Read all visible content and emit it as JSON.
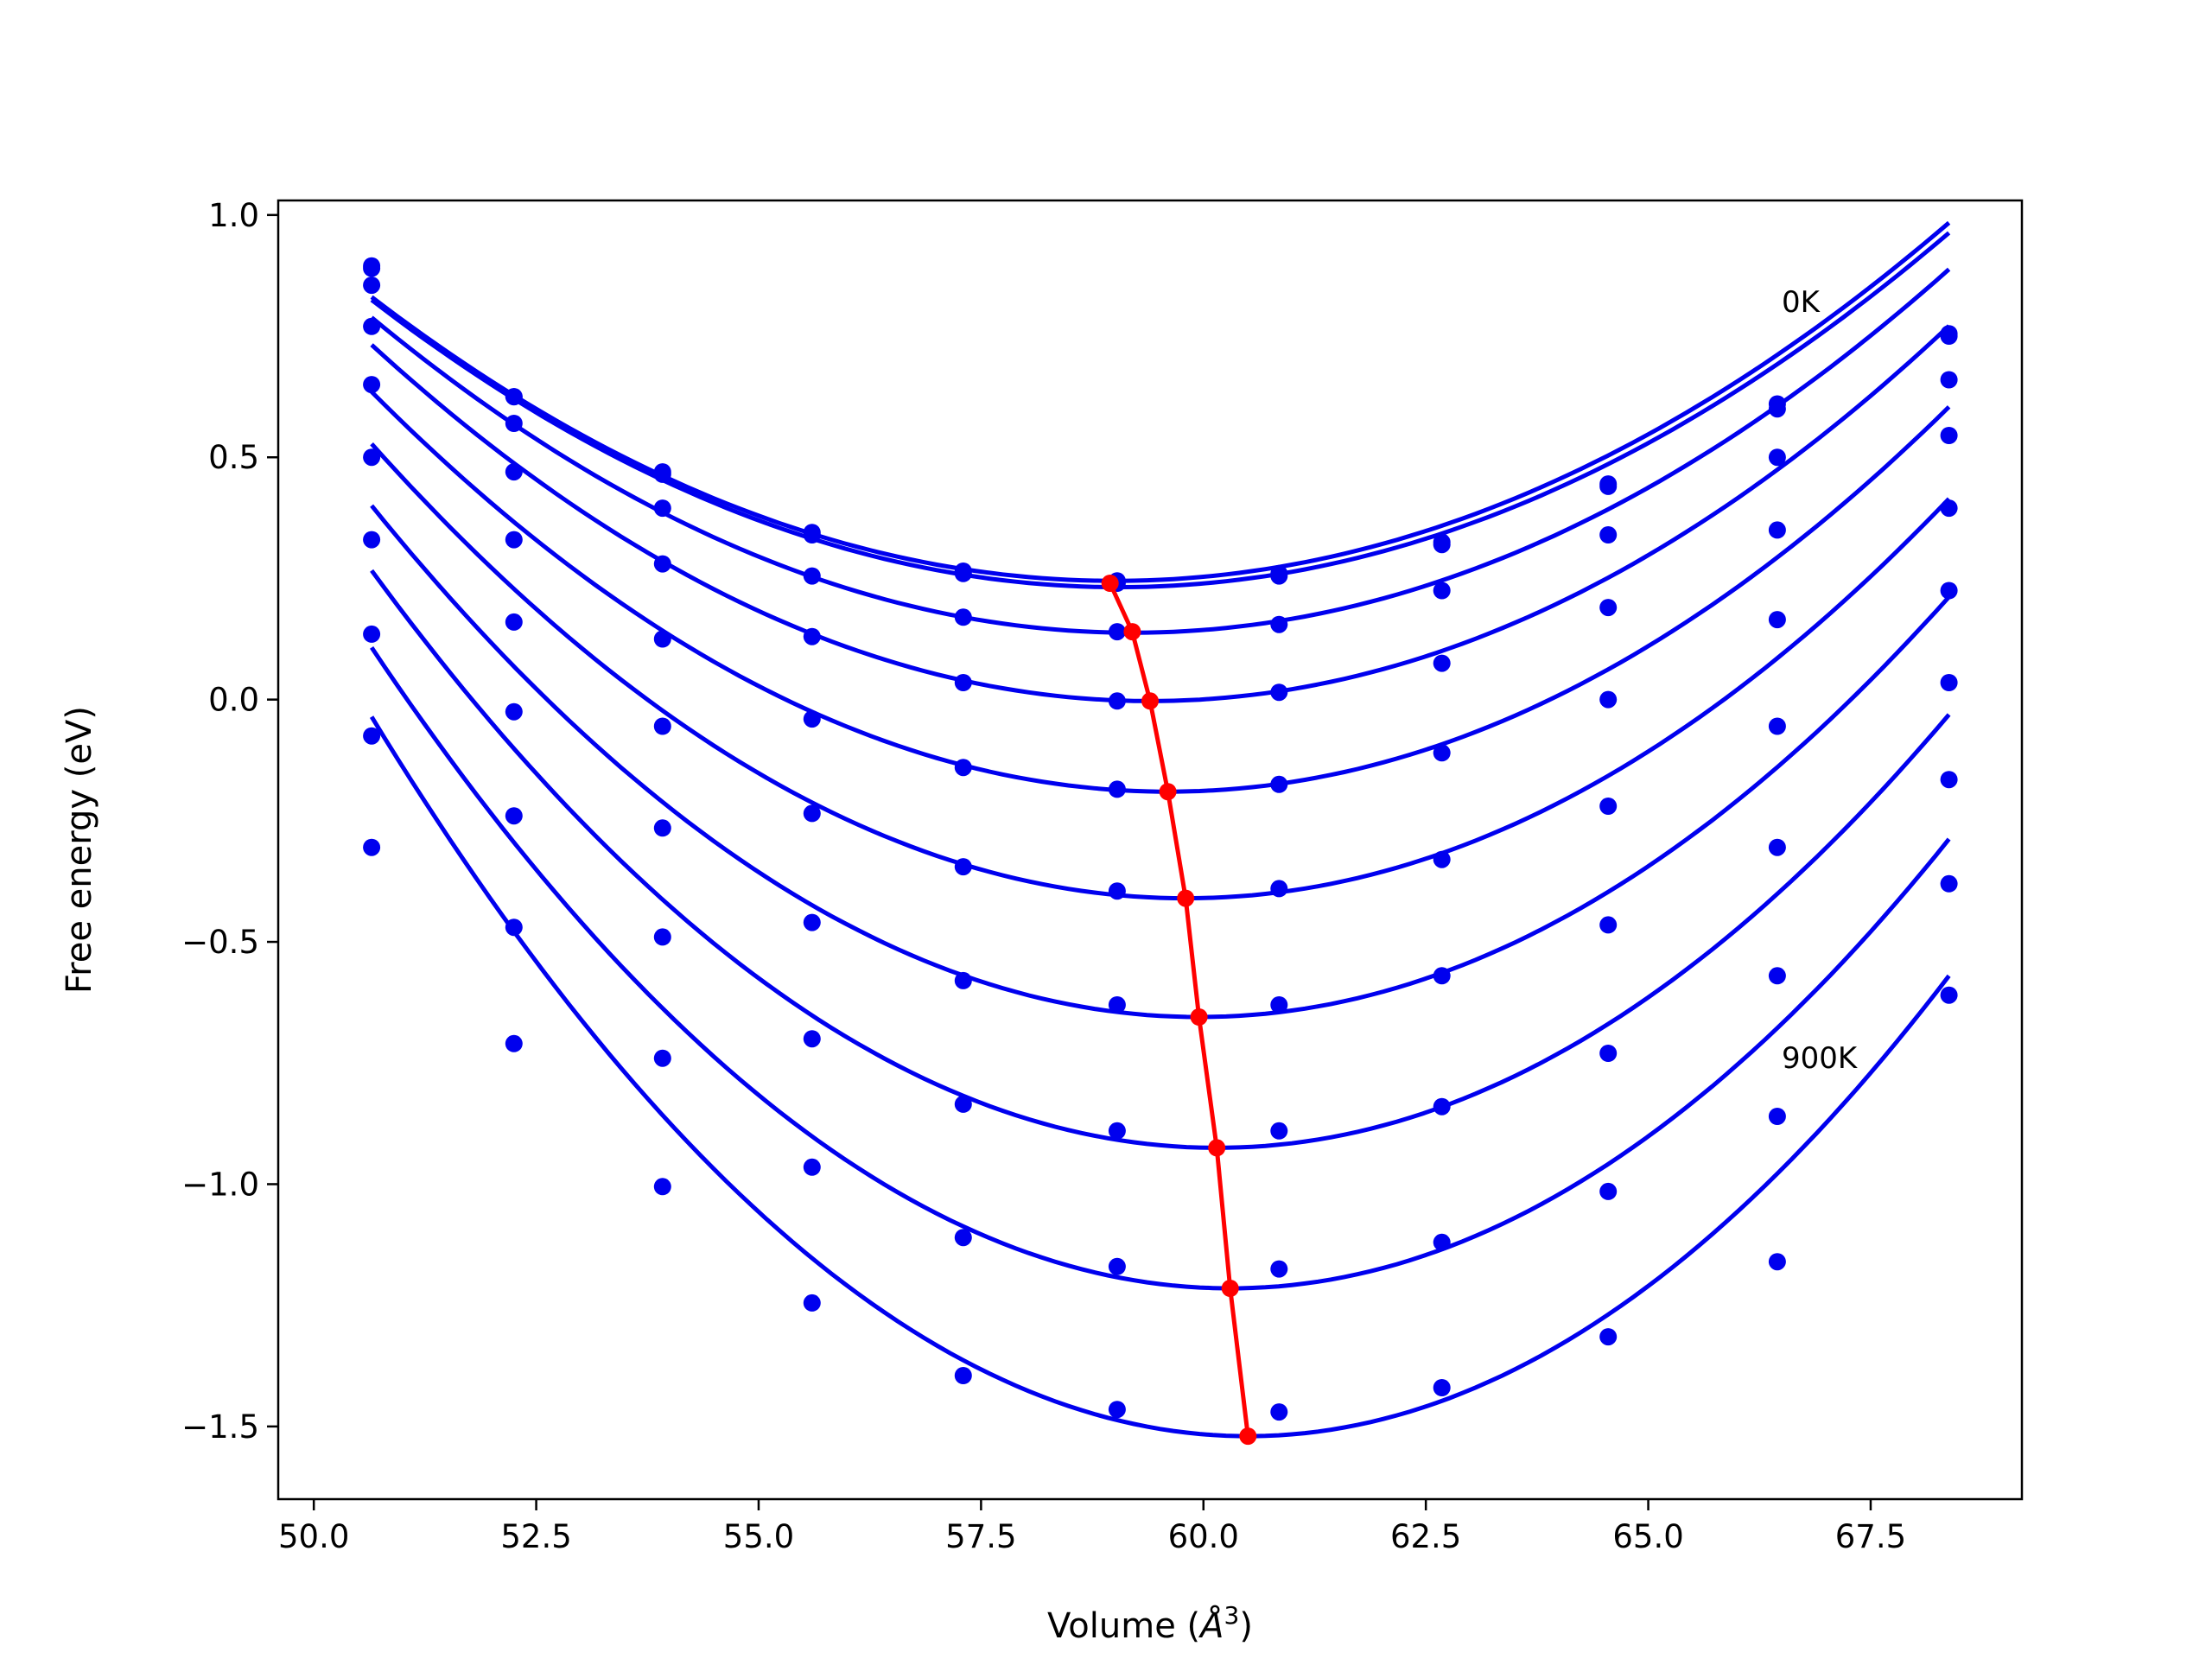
{
  "chart_data": {
    "type": "line",
    "xlabel": "Volume (Å³)",
    "xlabel_parts": [
      "Volume (",
      "Å",
      "3",
      ")"
    ],
    "ylabel": "Free energy (eV)",
    "xlim": [
      49.6,
      69.2
    ],
    "ylim": [
      -1.65,
      1.03
    ],
    "x_ticks": [
      50.0,
      52.5,
      55.0,
      57.5,
      60.0,
      62.5,
      65.0,
      67.5
    ],
    "x_tick_labels": [
      "50.0",
      "52.5",
      "55.0",
      "57.5",
      "60.0",
      "62.5",
      "65.0",
      "67.5"
    ],
    "y_ticks": [
      1.0,
      0.5,
      0.0,
      -0.5,
      -1.0,
      -1.5
    ],
    "y_tick_labels": [
      "1.0",
      "0.5",
      "0.0",
      "−0.5",
      "−1.0",
      "−1.5"
    ],
    "grid": false,
    "colors": {
      "curves": "#0000ee",
      "minima": "#ff0000",
      "frame": "#000000"
    },
    "annotations": [
      {
        "text": "0K",
        "x": 66.5,
        "y": 0.8
      },
      {
        "text": "900K",
        "x": 66.5,
        "y": -0.76
      }
    ],
    "volumes": [
      50.65,
      52.25,
      53.92,
      55.6,
      57.3,
      59.03,
      60.85,
      62.68,
      64.55,
      66.45,
      68.38
    ],
    "series": [
      {
        "points": [
          0.895,
          0.625,
          0.47,
          0.345,
          0.265,
          0.245,
          0.26,
          0.325,
          0.445,
          0.61,
          0.755
        ],
        "curve": {
          "v0": 59.0,
          "e0": 0.245,
          "c": 0.0084
        }
      },
      {
        "points": [
          0.89,
          0.625,
          0.465,
          0.34,
          0.26,
          0.24,
          0.255,
          0.32,
          0.44,
          0.6,
          0.75
        ],
        "curve": {
          "v0": 59.05,
          "e0": 0.232,
          "c": 0.0084
        }
      },
      {
        "points": [
          0.855,
          0.57,
          0.395,
          0.255,
          0.17,
          0.14,
          0.155,
          0.225,
          0.34,
          0.5,
          0.66
        ],
        "curve": {
          "v0": 59.2,
          "e0": 0.138,
          "c": 0.0089
        }
      },
      {
        "points": [
          0.77,
          0.47,
          0.28,
          0.13,
          0.035,
          -0.003,
          0.015,
          0.075,
          0.19,
          0.35,
          0.545
        ],
        "curve": {
          "v0": 59.4,
          "e0": -0.003,
          "c": 0.0096
        }
      },
      {
        "points": [
          0.65,
          0.33,
          0.125,
          -0.04,
          -0.14,
          -0.185,
          -0.175,
          -0.11,
          0.0,
          0.165,
          0.395
        ],
        "curve": {
          "v0": 59.6,
          "e0": -0.19,
          "c": 0.0103
        }
      },
      {
        "points": [
          0.5,
          0.16,
          -0.055,
          -0.235,
          -0.345,
          -0.395,
          -0.39,
          -0.33,
          -0.22,
          -0.055,
          0.225
        ],
        "curve": {
          "v0": 59.8,
          "e0": -0.41,
          "c": 0.0112
        }
      },
      {
        "points": [
          0.33,
          -0.025,
          -0.265,
          -0.46,
          -0.58,
          -0.63,
          -0.63,
          -0.57,
          -0.465,
          -0.305,
          0.035
        ],
        "curve": {
          "v0": 59.95,
          "e0": -0.655,
          "c": 0.0122
        }
      },
      {
        "points": [
          0.135,
          -0.24,
          -0.49,
          -0.7,
          -0.835,
          -0.89,
          -0.89,
          -0.84,
          -0.73,
          -0.57,
          -0.165
        ],
        "curve": {
          "v0": 60.15,
          "e0": -0.925,
          "c": 0.0132
        }
      },
      {
        "points": [
          -0.075,
          -0.47,
          -0.74,
          -0.965,
          -1.11,
          -1.17,
          -1.175,
          -1.12,
          -1.015,
          -0.86,
          -0.38
        ],
        "curve": {
          "v0": 60.3,
          "e0": -1.215,
          "c": 0.0142
        }
      },
      {
        "points": [
          -0.305,
          -0.71,
          -1.005,
          -1.245,
          -1.395,
          -1.465,
          -1.47,
          -1.42,
          -1.315,
          -1.16,
          -0.61
        ],
        "curve": {
          "v0": 60.5,
          "e0": -1.52,
          "c": 0.0153
        }
      }
    ],
    "minima": {
      "volumes": [
        58.95,
        59.2,
        59.4,
        59.6,
        59.8,
        59.95,
        60.15,
        60.3,
        60.5
      ],
      "energies": [
        0.24,
        0.14,
        -0.003,
        -0.19,
        -0.41,
        -0.655,
        -0.925,
        -1.215,
        -1.52
      ]
    }
  }
}
